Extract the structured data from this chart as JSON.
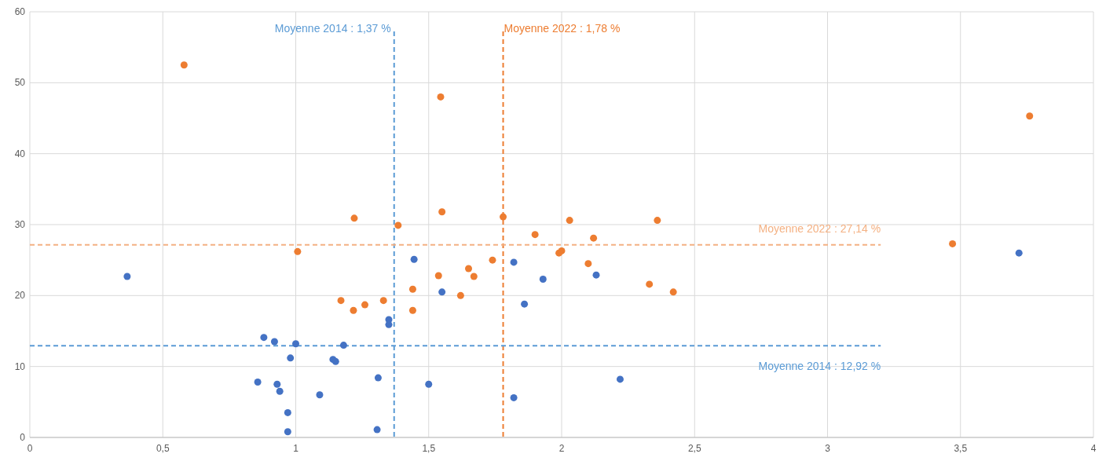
{
  "chart_data": {
    "type": "scatter",
    "marker": "circle",
    "grid": true,
    "xlim": [
      0,
      4
    ],
    "ylim": [
      0,
      60
    ],
    "xticks": [
      0,
      {
        "value": 0.5,
        "label": "0,5"
      },
      1,
      {
        "value": 1.5,
        "label": "1,5"
      },
      2,
      {
        "value": 2.5,
        "label": "2,5"
      },
      3,
      {
        "value": 3.5,
        "label": "3,5"
      },
      4
    ],
    "yticks": [
      0,
      10,
      20,
      30,
      40,
      50,
      60
    ],
    "series": [
      {
        "color": "#4472c4",
        "x": [
          0.366,
          0.88,
          0.92,
          1.0,
          0.98,
          0.857,
          0.93,
          0.94,
          0.97,
          0.97,
          1.09,
          1.18,
          1.14,
          1.15,
          1.31,
          1.306,
          1.35,
          1.35,
          1.445,
          1.55,
          1.5,
          1.82,
          1.82,
          1.93,
          1.86,
          2.13,
          2.22,
          3.72
        ],
        "values": [
          22.7,
          14.1,
          13.5,
          13.2,
          11.2,
          7.8,
          7.5,
          6.5,
          3.5,
          0.8,
          6.0,
          13.0,
          11.0,
          10.7,
          8.4,
          1.1,
          16.6,
          15.9,
          25.1,
          20.5,
          7.5,
          24.7,
          5.6,
          22.3,
          18.8,
          22.9,
          8.2,
          26.0
        ]
      },
      {
        "color": "#ed7d31",
        "x": [
          0.58,
          1.545,
          3.76,
          1.22,
          1.385,
          1.55,
          1.78,
          1.007,
          1.17,
          1.217,
          1.26,
          1.33,
          1.44,
          1.44,
          1.537,
          1.62,
          1.65,
          1.67,
          1.74,
          1.9,
          2.03,
          1.99,
          2.0,
          2.1,
          2.12,
          2.36,
          2.33,
          2.42,
          3.47
        ],
        "values": [
          52.5,
          48.0,
          45.3,
          30.9,
          29.9,
          31.8,
          31.1,
          26.2,
          19.3,
          17.9,
          18.7,
          19.3,
          20.9,
          17.9,
          22.8,
          20.0,
          23.8,
          22.7,
          25.0,
          28.6,
          30.6,
          26.0,
          26.3,
          24.5,
          28.1,
          30.6,
          21.6,
          20.5,
          27.3
        ]
      }
    ],
    "ref_lines": [
      {
        "axis": "x",
        "value": 1.37,
        "label": "Moyenne 2014 : 1,37 %",
        "color": "#5b9bd5",
        "line_style": "dashed"
      },
      {
        "axis": "x",
        "value": 1.78,
        "label": "Moyenne 2022 : 1,78 %",
        "color": "#ed7d31",
        "line_style": "dashed"
      },
      {
        "axis": "y",
        "value": 27.14,
        "label": "Moyenne 2022 : 27,14 %",
        "color": "#f4b183",
        "line_style": "dashed"
      },
      {
        "axis": "y",
        "value": 12.92,
        "label": "Moyenne 2014 : 12,92 %",
        "color": "#5b9bd5",
        "line_style": "dashed"
      }
    ]
  }
}
